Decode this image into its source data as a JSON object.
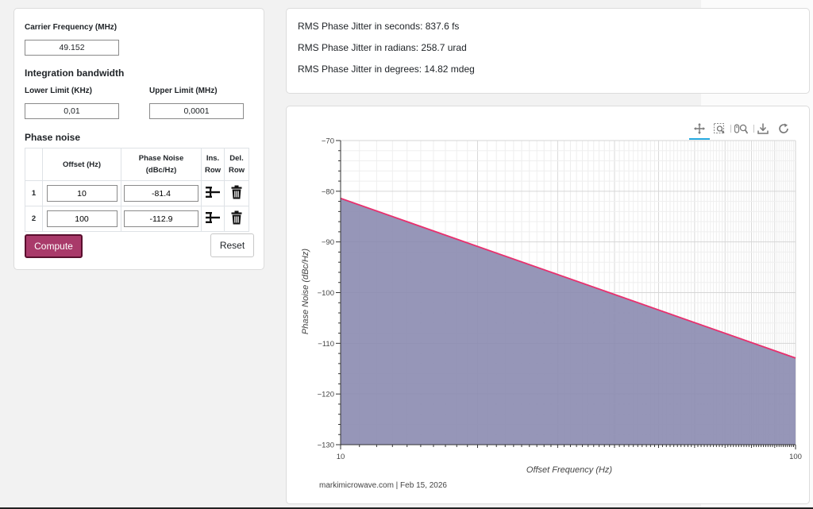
{
  "carrier": {
    "label": "Carrier Frequency (MHz)",
    "value": "49.152"
  },
  "integration": {
    "title": "Integration bandwidth",
    "lower_label": "Lower Limit (KHz)",
    "lower_value": "0,01",
    "upper_label": "Upper Limit (MHz)",
    "upper_value": "0,0001"
  },
  "phase_noise": {
    "title": "Phase noise",
    "headers": {
      "offset": "Offset (Hz)",
      "noise_1": "Phase Noise",
      "noise_2": "(dBc/Hz)",
      "ins_1": "Ins.",
      "ins_2": "Row",
      "del_1": "Del.",
      "del_2": "Row"
    },
    "rows": [
      {
        "index": "1",
        "offset": "10",
        "noise": "-81.4"
      },
      {
        "index": "2",
        "offset": "100",
        "noise": "-112.9"
      }
    ],
    "insert_icon": "insert-row-icon",
    "delete_icon": "trash-icon"
  },
  "buttons": {
    "compute": "Compute",
    "reset": "Reset"
  },
  "results": {
    "seconds": "RMS Phase Jitter in seconds: 837.6 fs",
    "radians": "RMS Phase Jitter in radians: 258.7 urad",
    "degrees": "RMS Phase Jitter in degrees: 14.82 mdeg"
  },
  "toolbar": {
    "icons": [
      "pan-icon",
      "box-zoom-icon",
      "wheel-zoom-icon",
      "save-icon",
      "reset-icon"
    ]
  },
  "colors": {
    "accent": "#a93a6a",
    "line": "#e8306e",
    "fill": "#8b8bb0",
    "tool_active": "#26aae1"
  },
  "footer": "markimicrowave.com | Feb 15, 2026",
  "chart_data": {
    "type": "area",
    "title": "",
    "xlabel": "Offset Frequency (Hz)",
    "ylabel": "Phase Noise (dBc/Hz)",
    "x_scale": "log",
    "xlim": [
      10,
      100
    ],
    "ylim": [
      -130,
      -70
    ],
    "x_ticks": [
      "10",
      "100"
    ],
    "y_ticks": [
      "−70",
      "−80",
      "−90",
      "−100",
      "−110",
      "−120",
      "−130"
    ],
    "grid": true,
    "series": [
      {
        "x": [
          10,
          100
        ],
        "y": [
          -81.4,
          -112.9
        ]
      }
    ]
  }
}
